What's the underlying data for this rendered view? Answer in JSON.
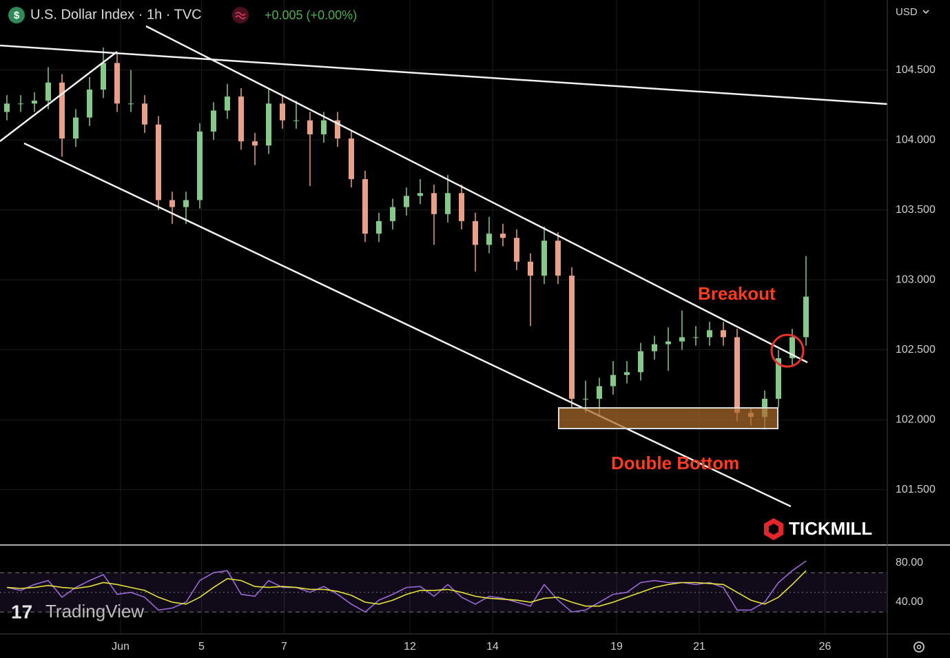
{
  "header": {
    "symbol_icon": "$",
    "title": "U.S. Dollar Index · 1h · TVC",
    "change": "+0.005 (+0.00%)",
    "currency": "USD"
  },
  "watermarks": {
    "platform": "TradingView",
    "broker": "TICKMILL"
  },
  "chart_data": [
    {
      "type": "candlestick",
      "annotations": [
        "Breakout",
        "Double Bottom"
      ],
      "up_color": "#86c98a",
      "down_color": "#e8a08a",
      "grid": true,
      "x": [
        4,
        12,
        20,
        28,
        36,
        44,
        52,
        60,
        68,
        76,
        84,
        92,
        100,
        108,
        116,
        124,
        132,
        140,
        148,
        156,
        164,
        172,
        180,
        188,
        196,
        204,
        212,
        220,
        228,
        236,
        244,
        252,
        260,
        268,
        276,
        284,
        292,
        300,
        308,
        316,
        324,
        332,
        340,
        348,
        356,
        364,
        372,
        380,
        388,
        396,
        404,
        412,
        420,
        428,
        436,
        444,
        452,
        460,
        468
      ],
      "open": [
        104.2,
        104.26,
        104.26,
        104.28,
        104.41,
        104.01,
        104.16,
        104.36,
        104.55,
        104.26,
        104.26,
        104.11,
        103.57,
        103.52,
        103.57,
        104.06,
        104.21,
        104.31,
        103.99,
        103.96,
        104.26,
        104.14,
        104.14,
        104.04,
        104.14,
        104.01,
        103.72,
        103.33,
        103.42,
        103.52,
        103.6,
        103.62,
        103.47,
        103.62,
        103.42,
        103.25,
        103.33,
        103.3,
        103.13,
        103.03,
        103.28,
        103.03,
        102.15,
        102.15,
        102.24,
        102.32,
        102.34,
        102.49,
        102.54,
        102.56,
        102.59,
        102.59,
        102.64,
        102.59,
        102.05,
        102.02,
        102.15,
        102.44,
        102.59
      ],
      "high": [
        104.32,
        104.32,
        104.34,
        104.52,
        104.47,
        104.22,
        104.45,
        104.66,
        104.62,
        104.5,
        104.32,
        104.17,
        103.63,
        103.63,
        104.12,
        104.27,
        104.4,
        104.37,
        104.05,
        104.37,
        104.32,
        104.28,
        104.2,
        104.2,
        104.2,
        104.07,
        103.78,
        103.48,
        103.58,
        103.66,
        103.72,
        103.68,
        103.75,
        103.68,
        103.48,
        103.45,
        103.4,
        103.36,
        103.19,
        103.38,
        103.34,
        103.09,
        102.28,
        102.3,
        102.42,
        102.42,
        102.55,
        102.6,
        102.66,
        102.78,
        102.67,
        102.7,
        102.7,
        102.65,
        102.09,
        102.21,
        102.5,
        102.65,
        103.17
      ],
      "low": [
        104.14,
        104.2,
        104.2,
        104.22,
        103.88,
        103.95,
        104.1,
        104.3,
        104.2,
        104.2,
        104.05,
        103.5,
        103.4,
        103.4,
        103.51,
        104.0,
        104.15,
        103.93,
        103.82,
        103.9,
        104.08,
        104.08,
        103.67,
        103.98,
        103.95,
        103.66,
        103.27,
        103.27,
        103.36,
        103.46,
        103.54,
        103.25,
        103.41,
        103.36,
        103.06,
        103.19,
        103.24,
        103.07,
        102.67,
        102.97,
        102.97,
        102.09,
        102.05,
        102.02,
        102.18,
        102.26,
        102.28,
        102.43,
        102.35,
        102.5,
        102.53,
        102.53,
        102.53,
        101.99,
        101.96,
        101.93,
        102.09,
        102.38,
        102.53
      ],
      "close": [
        104.26,
        104.26,
        104.28,
        104.41,
        104.01,
        104.16,
        104.36,
        104.55,
        104.26,
        104.26,
        104.11,
        103.57,
        103.52,
        103.57,
        104.06,
        104.21,
        104.31,
        103.99,
        103.96,
        104.26,
        104.14,
        104.14,
        104.04,
        104.14,
        104.01,
        103.72,
        103.33,
        103.42,
        103.52,
        103.6,
        103.62,
        103.47,
        103.62,
        103.42,
        103.25,
        103.33,
        103.3,
        103.13,
        103.03,
        103.28,
        103.03,
        102.15,
        102.15,
        102.24,
        102.32,
        102.34,
        102.49,
        102.54,
        102.56,
        102.59,
        102.59,
        102.64,
        102.59,
        102.05,
        102.02,
        102.15,
        102.44,
        102.59,
        102.88
      ],
      "xlim": [
        0,
        515.2
      ],
      "xticks": [
        {
          "value": 70,
          "label": "Jun"
        },
        {
          "value": 117,
          "label": "5"
        },
        {
          "value": 165,
          "label": "7"
        },
        {
          "value": 238,
          "label": "12"
        },
        {
          "value": 286,
          "label": "14"
        },
        {
          "value": 358,
          "label": "19"
        },
        {
          "value": 406,
          "label": "21"
        },
        {
          "value": 479,
          "label": "26"
        }
      ],
      "ylim": [
        101.11,
        105.0
      ],
      "yticks": [
        {
          "value": 104.5,
          "label": "104.500"
        },
        {
          "value": 104.0,
          "label": "104.000"
        },
        {
          "value": 103.5,
          "label": "103.500"
        },
        {
          "value": 103.0,
          "label": "103.000"
        },
        {
          "value": 102.5,
          "label": "102.500"
        },
        {
          "value": 102.0,
          "label": "102.000"
        },
        {
          "value": 101.5,
          "label": "101.500"
        }
      ]
    },
    {
      "type": "line",
      "x": [
        4,
        12,
        20,
        28,
        36,
        44,
        52,
        60,
        68,
        76,
        84,
        92,
        100,
        108,
        116,
        124,
        132,
        140,
        148,
        156,
        164,
        172,
        180,
        188,
        196,
        204,
        212,
        220,
        228,
        236,
        244,
        252,
        260,
        268,
        276,
        284,
        292,
        300,
        308,
        316,
        324,
        332,
        340,
        348,
        356,
        364,
        372,
        380,
        388,
        396,
        404,
        412,
        420,
        428,
        436,
        444,
        452,
        460,
        468
      ],
      "series": [
        {
          "color": "#9c6ad6",
          "values": [
            55,
            52,
            58,
            62,
            45,
            55,
            62,
            68,
            48,
            50,
            45,
            32,
            34,
            40,
            62,
            70,
            72,
            48,
            46,
            62,
            55,
            55,
            50,
            56,
            48,
            38,
            30,
            42,
            48,
            55,
            56,
            46,
            58,
            45,
            38,
            46,
            44,
            40,
            36,
            58,
            42,
            30,
            32,
            40,
            48,
            50,
            60,
            62,
            60,
            60,
            58,
            60,
            55,
            32,
            32,
            40,
            60,
            72,
            82
          ]
        },
        {
          "color": "#e6e33a",
          "values": [
            55,
            54,
            55,
            57,
            55,
            54,
            56,
            60,
            58,
            55,
            52,
            45,
            40,
            38,
            45,
            55,
            64,
            62,
            56,
            55,
            56,
            55,
            53,
            53,
            51,
            47,
            40,
            38,
            42,
            48,
            52,
            52,
            53,
            50,
            46,
            44,
            43,
            42,
            40,
            44,
            45,
            40,
            36,
            36,
            40,
            45,
            50,
            55,
            58,
            60,
            60,
            59,
            58,
            50,
            42,
            38,
            45,
            58,
            72
          ]
        }
      ],
      "bands": [
        70,
        50,
        30
      ],
      "xlim": [
        0,
        515.2
      ],
      "ylim": [
        7.7,
        97.5
      ],
      "yticks": [
        {
          "value": 80,
          "label": "80.00"
        },
        {
          "value": 40,
          "label": "40.00"
        }
      ]
    }
  ]
}
